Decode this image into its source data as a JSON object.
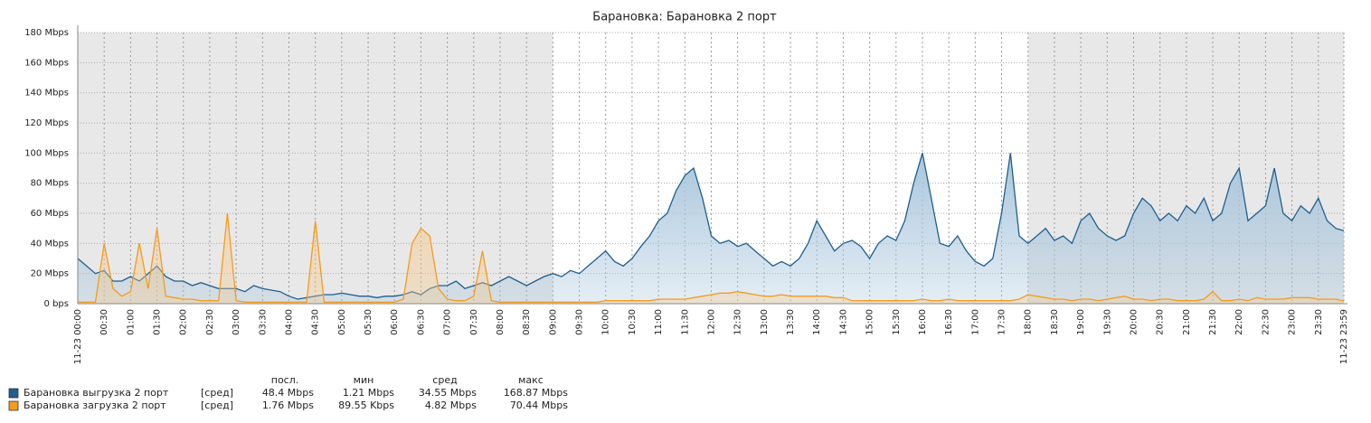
{
  "chart_data": {
    "type": "line",
    "title": "Барановка: Барановка 2 порт",
    "x": [
      "00:00",
      "00:10",
      "00:20",
      "00:30",
      "00:40",
      "00:50",
      "01:00",
      "01:10",
      "01:20",
      "01:30",
      "01:40",
      "01:50",
      "02:00",
      "02:10",
      "02:20",
      "02:30",
      "02:40",
      "02:50",
      "03:00",
      "03:10",
      "03:20",
      "03:30",
      "03:40",
      "03:50",
      "04:00",
      "04:10",
      "04:20",
      "04:30",
      "04:40",
      "04:50",
      "05:00",
      "05:10",
      "05:20",
      "05:30",
      "05:40",
      "05:50",
      "06:00",
      "06:10",
      "06:20",
      "06:30",
      "06:40",
      "06:50",
      "07:00",
      "07:10",
      "07:20",
      "07:30",
      "07:40",
      "07:50",
      "08:00",
      "08:10",
      "08:20",
      "08:30",
      "08:40",
      "08:50",
      "09:00",
      "09:10",
      "09:20",
      "09:30",
      "09:40",
      "09:50",
      "10:00",
      "10:10",
      "10:20",
      "10:30",
      "10:40",
      "10:50",
      "11:00",
      "11:10",
      "11:20",
      "11:30",
      "11:40",
      "11:50",
      "12:00",
      "12:10",
      "12:20",
      "12:30",
      "12:40",
      "12:50",
      "13:00",
      "13:10",
      "13:20",
      "13:30",
      "13:40",
      "13:50",
      "14:00",
      "14:10",
      "14:20",
      "14:30",
      "14:40",
      "14:50",
      "15:00",
      "15:10",
      "15:20",
      "15:30",
      "15:40",
      "15:50",
      "16:00",
      "16:10",
      "16:20",
      "16:30",
      "16:40",
      "16:50",
      "17:00",
      "17:10",
      "17:20",
      "17:30",
      "17:40",
      "17:50",
      "18:00",
      "18:10",
      "18:20",
      "18:30",
      "18:40",
      "18:50",
      "19:00",
      "19:10",
      "19:20",
      "19:30",
      "19:40",
      "19:50",
      "20:00",
      "20:10",
      "20:20",
      "20:30",
      "20:40",
      "20:50",
      "21:00",
      "21:10",
      "21:20",
      "21:30",
      "21:40",
      "21:50",
      "22:00",
      "22:10",
      "22:20",
      "22:30",
      "22:40",
      "22:50",
      "23:00",
      "23:10",
      "23:20",
      "23:30",
      "23:40",
      "23:50",
      "23:59"
    ],
    "series": [
      {
        "name": "Барановка выгрузка 2 порт",
        "color": "#1f5f8f",
        "fill": "#a9c6dc",
        "values": [
          30,
          25,
          20,
          22,
          15,
          15,
          18,
          15,
          20,
          25,
          18,
          15,
          15,
          12,
          14,
          12,
          10,
          10,
          10,
          8,
          12,
          10,
          9,
          8,
          5,
          3,
          4,
          5,
          6,
          6,
          7,
          6,
          5,
          5,
          4,
          5,
          5,
          6,
          8,
          6,
          10,
          12,
          12,
          15,
          10,
          12,
          14,
          12,
          15,
          18,
          15,
          12,
          15,
          18,
          20,
          18,
          22,
          20,
          25,
          30,
          35,
          28,
          25,
          30,
          38,
          45,
          55,
          60,
          75,
          85,
          90,
          70,
          45,
          40,
          42,
          38,
          40,
          35,
          30,
          25,
          28,
          25,
          30,
          40,
          55,
          45,
          35,
          40,
          42,
          38,
          30,
          40,
          45,
          42,
          55,
          80,
          100,
          70,
          40,
          38,
          45,
          35,
          28,
          25,
          30,
          60,
          100,
          45,
          40,
          45,
          50,
          42,
          45,
          40,
          55,
          60,
          50,
          45,
          42,
          45,
          60,
          70,
          65,
          55,
          60,
          55,
          65,
          60,
          70,
          55,
          60,
          80,
          90,
          55,
          60,
          65,
          90,
          60,
          55,
          65,
          60,
          70,
          55,
          50,
          48.4
        ],
        "func": "[сред]",
        "last": "48.4 Mbps",
        "min": "1.21 Mbps",
        "avg": "34.55 Mbps",
        "max": "168.87 Mbps"
      },
      {
        "name": "Барановка загрузка 2 порт",
        "color": "#f39c1f",
        "fill": "#f5c98e",
        "values": [
          1,
          1,
          1,
          40,
          10,
          5,
          8,
          40,
          10,
          50,
          5,
          4,
          3,
          3,
          2,
          2,
          2,
          60,
          2,
          1,
          1,
          1,
          1,
          1,
          1,
          1,
          1,
          55,
          1,
          1,
          1,
          1,
          1,
          1,
          1,
          1,
          1,
          3,
          40,
          50,
          45,
          10,
          3,
          2,
          2,
          5,
          35,
          2,
          1,
          1,
          1,
          1,
          1,
          1,
          1,
          1,
          1,
          1,
          1,
          1,
          2,
          2,
          2,
          2,
          2,
          2,
          3,
          3,
          3,
          3,
          4,
          5,
          6,
          7,
          7,
          8,
          7,
          6,
          5,
          5,
          6,
          5,
          5,
          5,
          5,
          5,
          4,
          4,
          2,
          2,
          2,
          2,
          2,
          2,
          2,
          2,
          3,
          2,
          2,
          3,
          2,
          2,
          2,
          2,
          2,
          2,
          2,
          3,
          6,
          5,
          4,
          3,
          3,
          2,
          3,
          3,
          2,
          3,
          4,
          5,
          3,
          3,
          2,
          3,
          3,
          2,
          2,
          2,
          3,
          8,
          2,
          2,
          3,
          2,
          4,
          3,
          3,
          3,
          4,
          4,
          4,
          3,
          3,
          3,
          1.76
        ],
        "func": "[сред]",
        "last": "1.76 Mbps",
        "min": "89.55 Kbps",
        "avg": "4.82 Mbps",
        "max": "70.44 Mbps"
      }
    ],
    "legend_headers": {
      "last": "посл.",
      "min": "мин",
      "avg": "сред",
      "max": "макс"
    },
    "ylim": [
      0,
      180
    ],
    "yticks": [
      {
        "value": 0,
        "label": "0 bps"
      },
      {
        "value": 20,
        "label": "20 Mbps"
      },
      {
        "value": 40,
        "label": "40 Mbps"
      },
      {
        "value": 60,
        "label": "60 Mbps"
      },
      {
        "value": 80,
        "label": "80 Mbps"
      },
      {
        "value": 100,
        "label": "100 Mbps"
      },
      {
        "value": 120,
        "label": "120 Mbps"
      },
      {
        "value": 140,
        "label": "140 Mbps"
      },
      {
        "value": 160,
        "label": "160 Mbps"
      },
      {
        "value": 180,
        "label": "180 Mbps"
      }
    ],
    "xlim": [
      "00:00",
      "23:59"
    ],
    "xticks": [
      {
        "value": "00:00",
        "label": "11-23 00:00"
      },
      "00:30",
      "01:00",
      "01:30",
      "02:00",
      "02:30",
      "03:00",
      "03:30",
      "04:00",
      "04:30",
      "05:00",
      "05:30",
      "06:00",
      "06:30",
      "07:00",
      "07:30",
      "08:00",
      "08:30",
      "09:00",
      "09:30",
      "10:00",
      "10:30",
      "11:00",
      "11:30",
      "12:00",
      "12:30",
      "13:00",
      "13:30",
      "14:00",
      "14:30",
      "15:00",
      "15:30",
      "16:00",
      "16:30",
      "17:00",
      "17:30",
      "18:00",
      "18:30",
      "19:00",
      "19:30",
      "20:00",
      "20:30",
      "21:00",
      "21:30",
      "22:00",
      "22:30",
      "23:00",
      "23:30",
      {
        "value": "23:59",
        "label": "11-23 23:59"
      }
    ],
    "shaded": [
      [
        "00:00",
        "09:00"
      ],
      [
        "18:00",
        "23:59"
      ]
    ],
    "grid": true
  }
}
